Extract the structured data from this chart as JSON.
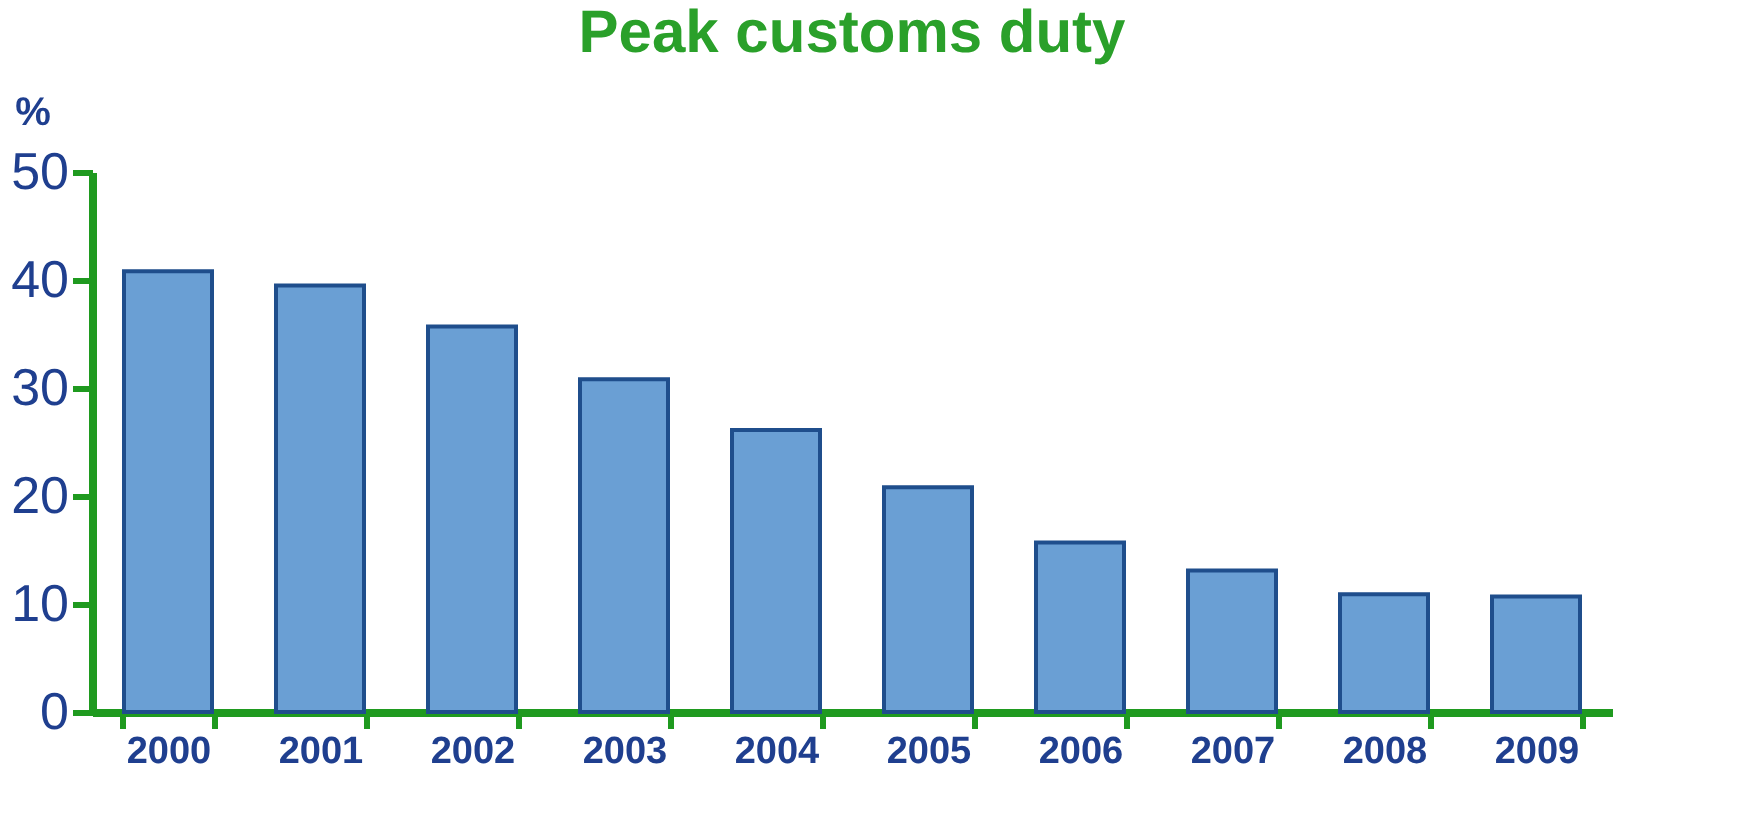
{
  "chart_data": {
    "type": "bar",
    "title": "Peak customs duty",
    "ylabel": "%",
    "categories": [
      "2000",
      "2001",
      "2002",
      "2003",
      "2004",
      "2005",
      "2006",
      "2007",
      "2008",
      "2009"
    ],
    "values": [
      40.8,
      39.5,
      35.7,
      30.8,
      26.1,
      20.8,
      15.7,
      13.1,
      10.9,
      10.7
    ],
    "color": "#6a9fd4",
    "ylim": [
      0,
      50
    ],
    "yticks": [
      0,
      10,
      20,
      30,
      40,
      50
    ],
    "grid": false
  }
}
